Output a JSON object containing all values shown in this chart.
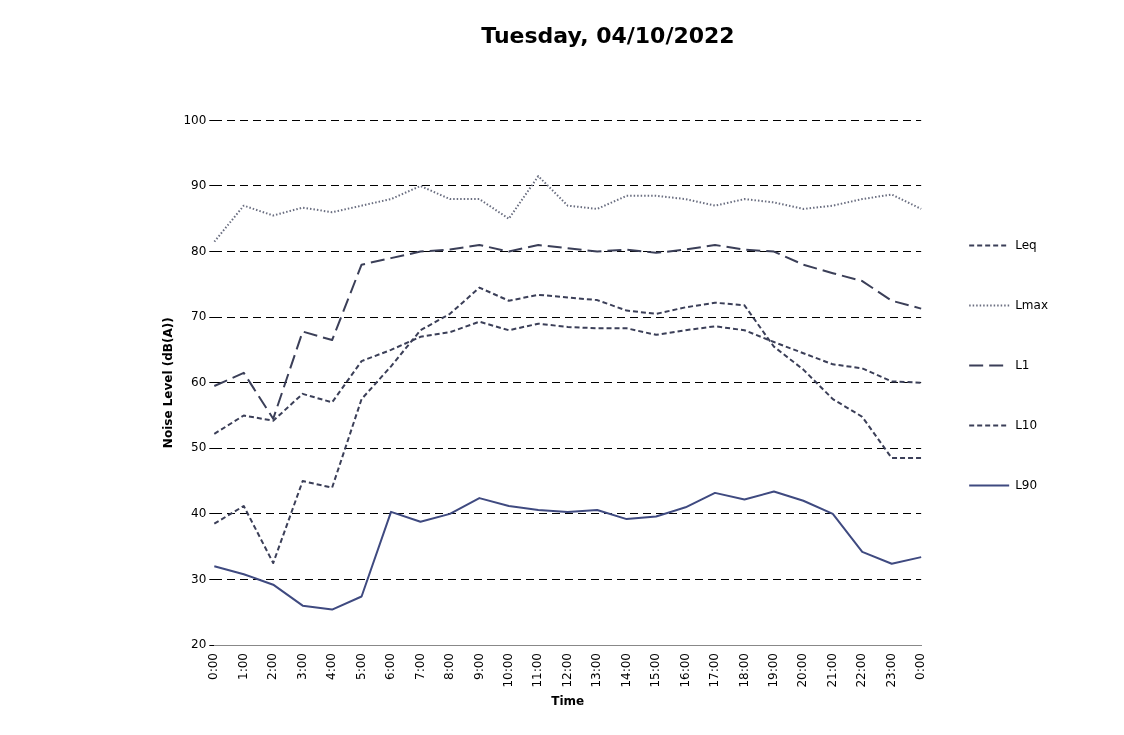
{
  "chart_data": {
    "type": "line",
    "title": "Tuesday, 04/10/2022",
    "xlabel": "Time",
    "ylabel": "Noise Level (dB(A))",
    "categories": [
      "0:00",
      "1:00",
      "2:00",
      "3:00",
      "4:00",
      "5:00",
      "6:00",
      "7:00",
      "8:00",
      "9:00",
      "10:00",
      "11:00",
      "12:00",
      "13:00",
      "14:00",
      "15:00",
      "16:00",
      "17:00",
      "18:00",
      "19:00",
      "20:00",
      "21:00",
      "22:00",
      "23:00",
      "0:00"
    ],
    "series": [
      {
        "name": "Leq",
        "color": "#3b3f58",
        "line_style": "dashed",
        "values": [
          52.2,
          55,
          54.2,
          58.3,
          57,
          63.3,
          65,
          67,
          67.7,
          69.3,
          68,
          69,
          68.5,
          68.3,
          68.3,
          67.3,
          68,
          68.6,
          68,
          66.2,
          64.5,
          62.8,
          62.2,
          60.2,
          60
        ]
      },
      {
        "name": "Lmax",
        "color": "#6a6e80",
        "line_style": "dotted",
        "values": [
          81.5,
          87,
          85.5,
          86.7,
          86,
          87,
          88,
          90,
          88,
          88,
          85,
          91.5,
          87,
          86.5,
          88.5,
          88.5,
          88,
          87,
          88,
          87.5,
          86.5,
          87,
          88,
          88.7,
          86.5
        ]
      },
      {
        "name": "L1",
        "color": "#3b3f58",
        "line_style": "dashed",
        "values": [
          59.5,
          61.5,
          54.5,
          67.8,
          66.5,
          78,
          79,
          80,
          80.3,
          81,
          80,
          81,
          80.5,
          80,
          80.3,
          79.8,
          80.3,
          81,
          80.3,
          80,
          78,
          76.7,
          75.5,
          72.5,
          71.3
        ]
      },
      {
        "name": "L10",
        "color": "#3b3f58",
        "line_style": "dashed",
        "values": [
          38.5,
          41.2,
          32.5,
          45,
          44,
          57.5,
          62.5,
          68,
          70.5,
          74.5,
          72.5,
          73.4,
          73,
          72.6,
          71,
          70.5,
          71.5,
          72.2,
          71.8,
          65.5,
          62,
          57.5,
          54.8,
          48.5,
          48.5
        ]
      },
      {
        "name": "L90",
        "color": "#3f4a80",
        "line_style": "solid",
        "values": [
          32,
          30.8,
          29.2,
          26,
          25.4,
          27.4,
          40.3,
          38.8,
          40,
          42.4,
          41.2,
          40.6,
          40.3,
          40.6,
          39.2,
          39.6,
          41,
          43.2,
          42.2,
          43.4,
          42,
          40,
          34.2,
          32.4,
          33.4
        ]
      }
    ],
    "ylim": [
      20,
      100
    ],
    "yticks": [
      20,
      30,
      40,
      50,
      60,
      70,
      80,
      90,
      100
    ],
    "grid": "y",
    "legend": "right",
    "marker": "none"
  }
}
